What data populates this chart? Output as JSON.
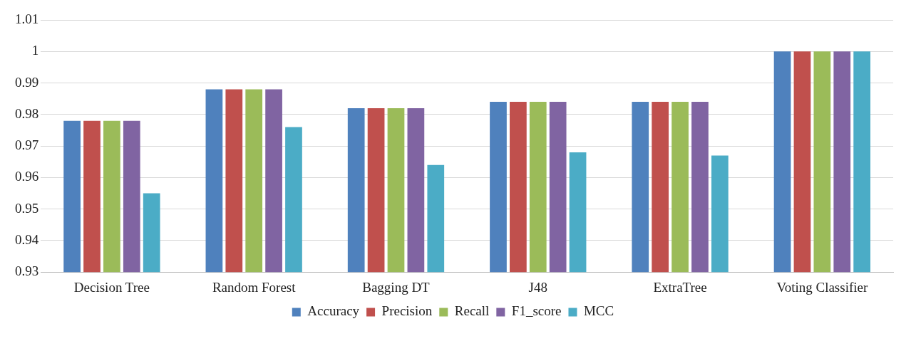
{
  "chart_data": {
    "type": "bar",
    "categories": [
      "Decision Tree",
      "Random Forest",
      "Bagging DT",
      "J48",
      "ExtraTree",
      "Voting Classifier"
    ],
    "series": [
      {
        "name": "Accuracy",
        "color": "#4f81bd",
        "values": [
          0.978,
          0.988,
          0.982,
          0.984,
          0.984,
          1
        ]
      },
      {
        "name": "Precision",
        "color": "#c0504d",
        "values": [
          0.978,
          0.988,
          0.982,
          0.984,
          0.984,
          1
        ]
      },
      {
        "name": "Recall",
        "color": "#9bbb59",
        "values": [
          0.978,
          0.988,
          0.982,
          0.984,
          0.984,
          1
        ]
      },
      {
        "name": "F1_score",
        "color": "#8064a2",
        "values": [
          0.978,
          0.988,
          0.982,
          0.984,
          0.984,
          1
        ]
      },
      {
        "name": "MCC",
        "color": "#4bacc6",
        "values": [
          0.955,
          0.976,
          0.964,
          0.968,
          0.967,
          1
        ]
      }
    ],
    "ylim": [
      0.93,
      1.01
    ],
    "yticks": [
      0.93,
      0.94,
      0.95,
      0.96,
      0.97,
      0.98,
      0.99,
      1,
      1.01
    ],
    "grid": "y",
    "legend": "bottom"
  }
}
